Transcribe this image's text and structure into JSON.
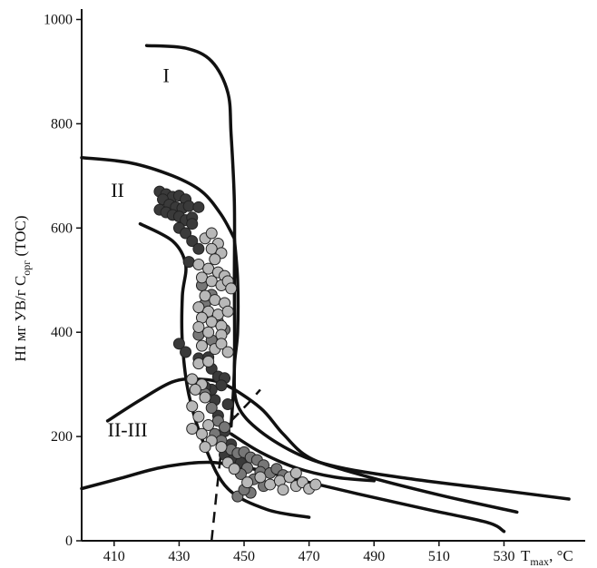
{
  "chart_data": {
    "type": "scatter",
    "title": "",
    "xlabel": "T",
    "xlabel_sub": "max",
    "xlabel_unit": ", °C",
    "ylabel_prefix": "HI  мг УВ/г C",
    "ylabel_sub": "орг",
    "ylabel_suffix": " (TOC)",
    "xlim": [
      400,
      555
    ],
    "ylim": [
      0,
      1020
    ],
    "x_ticks": [
      410,
      430,
      450,
      470,
      490,
      510,
      530
    ],
    "y_ticks": [
      0,
      200,
      400,
      600,
      800,
      1000
    ],
    "grid": false,
    "curve_labels": [
      {
        "text": "I",
        "x": 425,
        "y": 880
      },
      {
        "text": "II",
        "x": 409,
        "y": 660
      },
      {
        "text": "II-III",
        "x": 408,
        "y": 200
      }
    ],
    "curves": [
      {
        "name": "I",
        "points": [
          [
            420,
            950
          ],
          [
            432,
            945
          ],
          [
            440,
            920
          ],
          [
            445,
            860
          ],
          [
            446,
            780
          ],
          [
            447,
            650
          ],
          [
            447,
            500
          ],
          [
            447,
            330
          ],
          [
            446,
            220
          ]
        ]
      },
      {
        "name": "II-upper",
        "points": [
          [
            400,
            735
          ],
          [
            415,
            725
          ],
          [
            428,
            700
          ],
          [
            437,
            670
          ],
          [
            443,
            625
          ],
          [
            447,
            580
          ]
        ]
      },
      {
        "name": "II-inner",
        "points": [
          [
            418,
            608
          ],
          [
            428,
            575
          ],
          [
            432,
            530
          ],
          [
            431,
            470
          ],
          [
            431,
            380
          ],
          [
            433,
            280
          ],
          [
            438,
            180
          ],
          [
            445,
            100
          ],
          [
            457,
            60
          ],
          [
            470,
            45
          ]
        ]
      },
      {
        "name": "II-main",
        "points": [
          [
            447,
            580
          ],
          [
            448,
            500
          ],
          [
            448,
            400
          ],
          [
            447,
            330
          ],
          [
            448,
            260
          ],
          [
            455,
            210
          ],
          [
            467,
            165
          ],
          [
            480,
            140
          ],
          [
            500,
            120
          ],
          [
            525,
            100
          ],
          [
            550,
            80
          ]
        ]
      },
      {
        "name": "II-III",
        "points": [
          [
            408,
            230
          ],
          [
            418,
            270
          ],
          [
            428,
            305
          ],
          [
            436,
            310
          ],
          [
            444,
            300
          ],
          [
            455,
            255
          ],
          [
            462,
            205
          ],
          [
            470,
            160
          ],
          [
            484,
            130
          ],
          [
            510,
            88
          ],
          [
            534,
            55
          ]
        ]
      },
      {
        "name": "III",
        "points": [
          [
            400,
            100
          ],
          [
            412,
            120
          ],
          [
            424,
            140
          ],
          [
            436,
            150
          ],
          [
            444,
            148
          ],
          [
            455,
            135
          ],
          [
            468,
            115
          ],
          [
            485,
            90
          ],
          [
            508,
            58
          ],
          [
            525,
            35
          ],
          [
            530,
            18
          ]
        ]
      },
      {
        "name": "III-branch",
        "points": [
          [
            446,
            205
          ],
          [
            455,
            170
          ],
          [
            466,
            140
          ],
          [
            478,
            122
          ],
          [
            490,
            115
          ]
        ]
      },
      {
        "name": "dashed-vertical",
        "dashed": true,
        "points": [
          [
            440,
            0
          ],
          [
            441,
            60
          ],
          [
            442,
            120
          ],
          [
            443,
            170
          ],
          [
            445,
            215
          ],
          [
            447,
            240
          ]
        ]
      },
      {
        "name": "dashed-diagonal",
        "dashed": true,
        "points": [
          [
            446,
            230
          ],
          [
            451,
            262
          ],
          [
            455,
            290
          ]
        ]
      }
    ],
    "series": [
      {
        "name": "dark",
        "color": "#3a3a3a",
        "points": [
          [
            424,
            670
          ],
          [
            426,
            665
          ],
          [
            428,
            660
          ],
          [
            430,
            662
          ],
          [
            432,
            655
          ],
          [
            425,
            655
          ],
          [
            427,
            645
          ],
          [
            429,
            640
          ],
          [
            431,
            638
          ],
          [
            433,
            642
          ],
          [
            424,
            635
          ],
          [
            426,
            630
          ],
          [
            428,
            625
          ],
          [
            430,
            622
          ],
          [
            432,
            615
          ],
          [
            434,
            620
          ],
          [
            436,
            640
          ],
          [
            434,
            608
          ],
          [
            430,
            600
          ],
          [
            432,
            590
          ],
          [
            434,
            575
          ],
          [
            436,
            560
          ],
          [
            433,
            535
          ],
          [
            430,
            378
          ],
          [
            432,
            362
          ],
          [
            436,
            350
          ],
          [
            439,
            352
          ],
          [
            440,
            330
          ],
          [
            442,
            315
          ],
          [
            444,
            312
          ],
          [
            443,
            298
          ],
          [
            440,
            290
          ],
          [
            438,
            295
          ],
          [
            441,
            270
          ],
          [
            445,
            262
          ],
          [
            442,
            240
          ],
          [
            444,
            210
          ],
          [
            446,
            185
          ],
          [
            444,
            165
          ],
          [
            447,
            160
          ],
          [
            449,
            150
          ]
        ]
      },
      {
        "name": "medium",
        "color": "#777777",
        "points": [
          [
            437,
            490
          ],
          [
            440,
            472
          ],
          [
            438,
            455
          ],
          [
            442,
            420
          ],
          [
            444,
            405
          ],
          [
            436,
            395
          ],
          [
            440,
            385
          ],
          [
            438,
            282
          ],
          [
            440,
            255
          ],
          [
            442,
            230
          ],
          [
            444,
            218
          ],
          [
            441,
            205
          ],
          [
            443,
            192
          ],
          [
            446,
            175
          ],
          [
            448,
            168
          ],
          [
            450,
            170
          ],
          [
            452,
            160
          ],
          [
            454,
            155
          ],
          [
            456,
            145
          ],
          [
            451,
            140
          ],
          [
            455,
            132
          ],
          [
            458,
            130
          ],
          [
            460,
            138
          ],
          [
            462,
            126
          ],
          [
            449,
            128
          ],
          [
            453,
            118
          ],
          [
            456,
            105
          ],
          [
            452,
            92
          ],
          [
            448,
            85
          ],
          [
            450,
            98
          ]
        ]
      },
      {
        "name": "light",
        "color": "#b8b8b8",
        "points": [
          [
            438,
            580
          ],
          [
            440,
            590
          ],
          [
            442,
            570
          ],
          [
            440,
            560
          ],
          [
            443,
            552
          ],
          [
            441,
            540
          ],
          [
            436,
            530
          ],
          [
            439,
            522
          ],
          [
            442,
            515
          ],
          [
            444,
            508
          ],
          [
            437,
            505
          ],
          [
            440,
            498
          ],
          [
            443,
            490
          ],
          [
            445,
            498
          ],
          [
            446,
            484
          ],
          [
            438,
            470
          ],
          [
            441,
            462
          ],
          [
            444,
            456
          ],
          [
            436,
            448
          ],
          [
            439,
            440
          ],
          [
            442,
            434
          ],
          [
            445,
            440
          ],
          [
            437,
            428
          ],
          [
            440,
            420
          ],
          [
            443,
            412
          ],
          [
            436,
            410
          ],
          [
            439,
            400
          ],
          [
            443,
            395
          ],
          [
            437,
            374
          ],
          [
            441,
            368
          ],
          [
            443,
            378
          ],
          [
            445,
            362
          ],
          [
            436,
            340
          ],
          [
            439,
            344
          ],
          [
            434,
            310
          ],
          [
            437,
            300
          ],
          [
            435,
            290
          ],
          [
            438,
            275
          ],
          [
            434,
            258
          ],
          [
            436,
            238
          ],
          [
            439,
            222
          ],
          [
            434,
            215
          ],
          [
            437,
            205
          ],
          [
            440,
            192
          ],
          [
            438,
            180
          ],
          [
            443,
            180
          ],
          [
            445,
            150
          ],
          [
            447,
            138
          ],
          [
            451,
            112
          ],
          [
            455,
            122
          ],
          [
            458,
            108
          ],
          [
            461,
            115
          ],
          [
            464,
            122
          ],
          [
            462,
            98
          ],
          [
            466,
            105
          ],
          [
            468,
            112
          ],
          [
            470,
            100
          ],
          [
            472,
            108
          ],
          [
            466,
            130
          ]
        ]
      }
    ]
  }
}
